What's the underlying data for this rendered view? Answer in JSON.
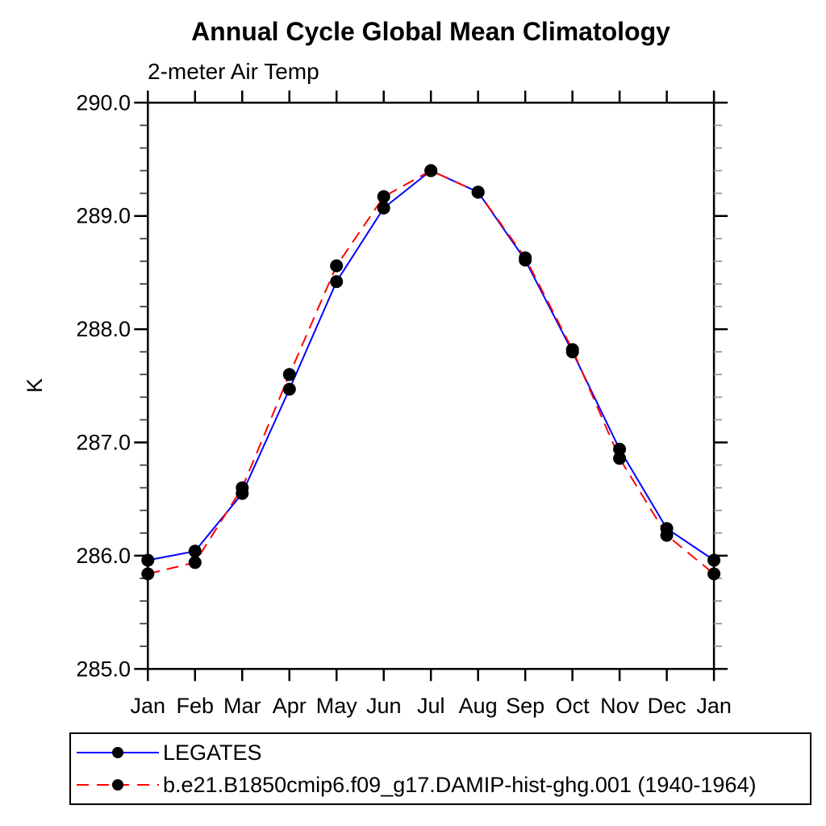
{
  "title": "Annual Cycle Global Mean Climatology",
  "subtitle": "2-meter Air Temp",
  "ylabel": "K",
  "legend": {
    "entries": [
      {
        "label": "LEGATES",
        "line_color": "#0000ff",
        "line_style": "solid",
        "marker_color": "#000000"
      },
      {
        "label": "b.e21.B1850cmip6.f09_g17.DAMIP-hist-ghg.001 (1940-1964)",
        "line_color": "#ff0000",
        "line_style": "dashed",
        "marker_color": "#000000"
      }
    ]
  },
  "chart_data": {
    "type": "line",
    "title": "Annual Cycle Global Mean Climatology",
    "subtitle": "2-meter Air Temp",
    "xlabel": "",
    "ylabel": "K",
    "x": [
      "Jan",
      "Feb",
      "Mar",
      "Apr",
      "May",
      "Jun",
      "Jul",
      "Aug",
      "Sep",
      "Oct",
      "Nov",
      "Dec",
      "Jan"
    ],
    "ylim": [
      285.0,
      290.0
    ],
    "ytick_major_interval": 1.0,
    "ytick_minor_interval": 0.2,
    "ytick_labels": [
      "285.0",
      "286.0",
      "287.0",
      "288.0",
      "289.0",
      "290.0"
    ],
    "grid": false,
    "legend_position": "below-plot",
    "marker": "filled-circle",
    "marker_color": "#000000",
    "series": [
      {
        "name": "LEGATES",
        "color": "#0000ff",
        "style": "solid",
        "values": [
          285.96,
          286.04,
          286.55,
          287.47,
          288.42,
          289.07,
          289.4,
          289.21,
          288.61,
          287.8,
          286.94,
          286.24,
          285.96
        ]
      },
      {
        "name": "b.e21.B1850cmip6.f09_g17.DAMIP-hist-ghg.001 (1940-1964)",
        "color": "#ff0000",
        "style": "dashed",
        "values": [
          285.84,
          285.94,
          286.6,
          287.6,
          288.56,
          289.17,
          289.4,
          289.21,
          288.63,
          287.82,
          286.86,
          286.18,
          285.84
        ]
      }
    ]
  }
}
